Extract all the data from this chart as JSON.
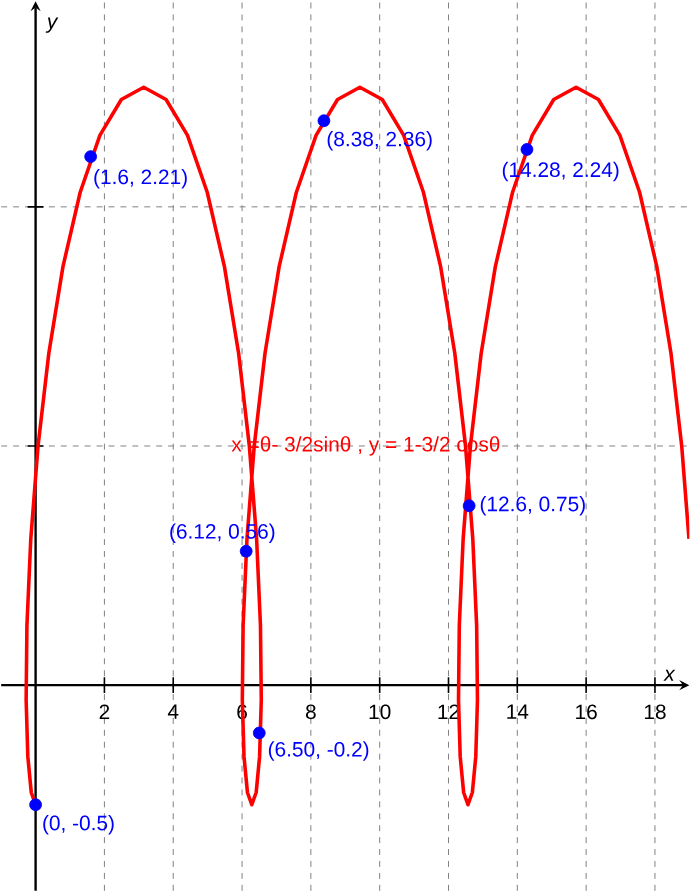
{
  "chart_data": {
    "type": "line",
    "xlabel": "x",
    "ylabel": "y",
    "annotations": [
      "x =θ- 3/2sinθ , y = 1-3/2 cosθ"
    ],
    "xlim": [
      -1,
      19
    ],
    "ylim": [
      -0.86,
      2.86
    ],
    "xticks": [
      2,
      4,
      6,
      8,
      10,
      12,
      14,
      16,
      18
    ],
    "yticks": [
      {
        "value": 1,
        "label": null
      },
      {
        "value": 2,
        "label": null
      }
    ],
    "tick_labels": "x",
    "grid": true,
    "series": [
      {
        "color": "#ff0000",
        "marker": "none",
        "x": [
          0,
          -0.126,
          -0.226,
          -0.275,
          -0.252,
          -0.14,
          0.071,
          0.384,
          0.795,
          1.296,
          1.868,
          2.492,
          3.142,
          3.792,
          4.415,
          4.988,
          5.488,
          5.9,
          6.212,
          6.423,
          6.535,
          6.559,
          6.51,
          6.41,
          6.283,
          6.157,
          6.057,
          6.008,
          6.031,
          6.143,
          6.354,
          6.667,
          7.078,
          7.579,
          8.151,
          8.775,
          9.425,
          10.075,
          10.698,
          11.271,
          11.771,
          12.183,
          12.495,
          12.706,
          12.818,
          12.842,
          12.793,
          12.693,
          12.566,
          12.44,
          12.34,
          12.291,
          12.314,
          12.426,
          12.637,
          12.95,
          13.361,
          13.862,
          14.434,
          15.058,
          15.708,
          16.358,
          16.981,
          17.554,
          18.054,
          18.466,
          18.778,
          18.989
        ],
        "values": [
          -0.5,
          -0.449,
          -0.299,
          -0.061,
          0.25,
          0.612,
          1.0,
          1.388,
          1.75,
          2.061,
          2.299,
          2.449,
          2.5,
          2.449,
          2.299,
          2.061,
          1.75,
          1.388,
          1.0,
          0.612,
          0.25,
          -0.061,
          -0.299,
          -0.449,
          -0.5,
          -0.449,
          -0.299,
          -0.061,
          0.25,
          0.612,
          1.0,
          1.388,
          1.75,
          2.061,
          2.299,
          2.449,
          2.5,
          2.449,
          2.299,
          2.061,
          1.75,
          1.388,
          1.0,
          0.612,
          0.25,
          -0.061,
          -0.299,
          -0.449,
          -0.5,
          -0.449,
          -0.299,
          -0.061,
          0.25,
          0.612,
          1.0,
          1.388,
          1.75,
          2.061,
          2.299,
          2.449,
          2.5,
          2.449,
          2.299,
          2.061,
          1.75,
          1.388,
          1.0,
          0.612
        ]
      },
      {
        "type": "scatter",
        "color": "#0000ff",
        "marker": "circle",
        "x": [
          0,
          1.6,
          6.12,
          6.5,
          8.38,
          12.6,
          14.28
        ],
        "values": [
          -0.5,
          2.21,
          0.56,
          -0.2,
          2.36,
          0.75,
          2.24
        ],
        "value_labels": [
          "(0, -0.5)",
          "(1.6, 2.21)",
          "(6.12, 0.56)",
          "(6.50, -0.2)",
          "(8.38, 2.36)",
          "(12.6, 0.75)",
          "(14.28, 2.24)"
        ]
      }
    ]
  }
}
